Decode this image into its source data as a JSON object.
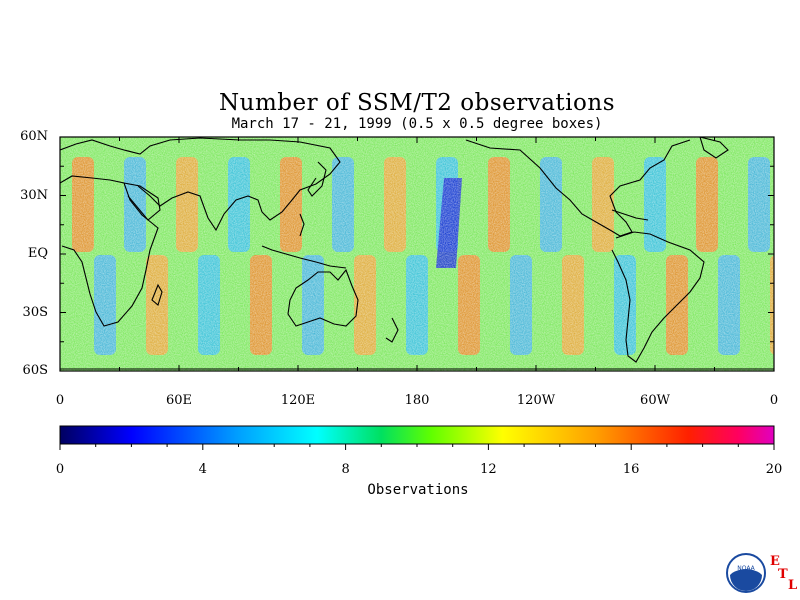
{
  "title": "Number of SSM/T2 observations",
  "subtitle": "March 17 - 21, 1999 (0.5 x 0.5 degree boxes)",
  "map": {
    "lat_labels": [
      "60N",
      "30N",
      "EQ",
      "30S",
      "60S"
    ],
    "lon_labels": [
      "0",
      "60E",
      "120E",
      "180",
      "120W",
      "60W",
      "0"
    ],
    "lat_range": [
      -60,
      60
    ],
    "lon_range": [
      0,
      360
    ]
  },
  "colorbar": {
    "title": "Observations",
    "tick_labels": [
      "0",
      "4",
      "8",
      "12",
      "16",
      "20"
    ],
    "range": [
      0,
      20
    ],
    "colors": [
      "#000080",
      "#0000ff",
      "#00a0ff",
      "#00ffff",
      "#00e060",
      "#60ff00",
      "#ffff00",
      "#ffa000",
      "#ff2000",
      "#ff0080",
      "#e000e0"
    ]
  },
  "logo": {
    "icon": "noaa-logo-icon",
    "letters": [
      "E",
      "T",
      "L"
    ],
    "logo_text": "NOAA"
  }
}
